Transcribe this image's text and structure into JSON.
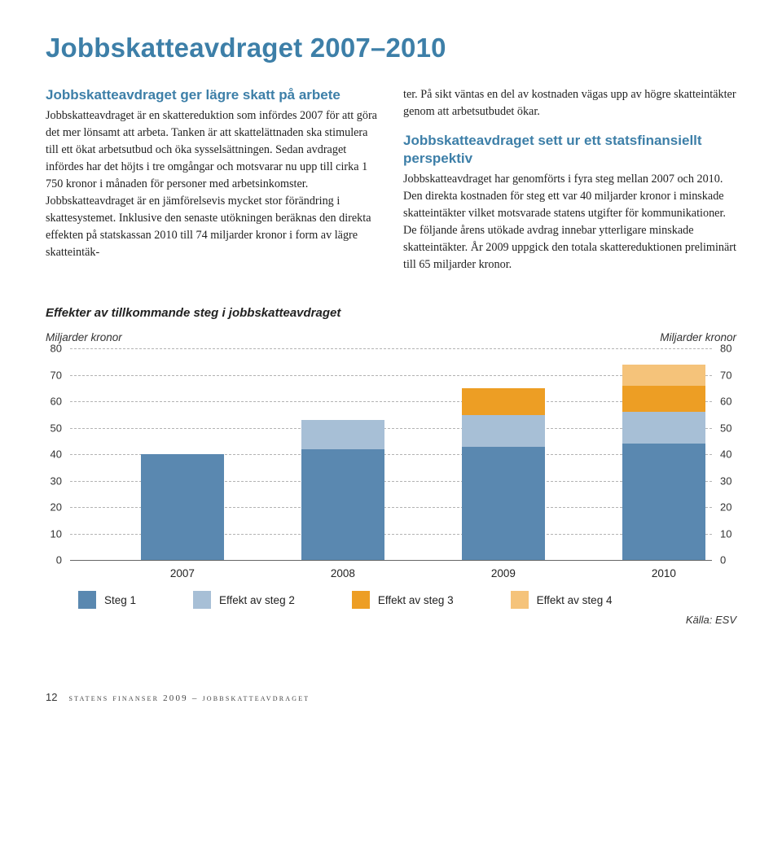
{
  "title": "Jobbskatteavdraget 2007–2010",
  "left": {
    "heading": "Jobbskatteavdraget ger lägre skatt på arbete",
    "body": "Jobbskatteavdraget är en skattereduktion som infördes 2007 för att göra det mer lönsamt att arbeta. Tanken är att skattelättnaden ska stimulera till ett ökat arbetsutbud och öka sysselsättningen. Sedan avdraget infördes har det höjts i tre omgångar och motsvarar nu upp till cirka 1 750 kronor i månaden för personer med arbetsinkomster. Jobbskatteavdraget är en jämförelsevis mycket stor förändring i skattesystemet. Inklusive den senaste utökningen beräknas den direkta effekten på statskassan 2010 till 74 miljarder kronor i form av lägre skatteintäk-"
  },
  "right": {
    "body_intro": "ter. På sikt väntas en del av kostnaden vägas upp av högre skatteintäkter genom att arbetsutbudet ökar.",
    "heading": "Jobbskatteavdraget sett ur ett statsfinansiellt perspektiv",
    "body": "Jobbskatteavdraget har genomförts i fyra steg mellan 2007 och 2010. Den direkta kostnaden för steg ett var 40 miljarder kronor i minskade skatteintäkter vilket motsvarade statens utgifter för kommunikationer. De följande årens utökade avdrag innebar ytterligare minskade skatteintäkter. År 2009 uppgick den totala skattereduktionen preliminärt till 65 miljarder kronor."
  },
  "chart": {
    "title": "Effekter av tillkommande steg i jobbskatteavdraget",
    "y_label_left": "Miljarder kronor",
    "y_label_right": "Miljarder kronor",
    "ymax": 80,
    "ytick_step": 10,
    "yticks": [
      0,
      10,
      20,
      30,
      40,
      50,
      60,
      70,
      80
    ],
    "categories": [
      "2007",
      "2008",
      "2009",
      "2010"
    ],
    "series": [
      {
        "key": "steg1",
        "label": "Steg 1",
        "color": "#5a88b0"
      },
      {
        "key": "steg2",
        "label": "Effekt av steg 2",
        "color": "#a7bfd6"
      },
      {
        "key": "steg3",
        "label": "Effekt av steg 3",
        "color": "#ed9e24"
      },
      {
        "key": "steg4",
        "label": "Effekt av steg 4",
        "color": "#f5c37a"
      }
    ],
    "stacks": [
      {
        "steg1": 40,
        "steg2": 0,
        "steg3": 0,
        "steg4": 0
      },
      {
        "steg1": 42,
        "steg2": 11,
        "steg3": 0,
        "steg4": 0
      },
      {
        "steg1": 43,
        "steg2": 12,
        "steg3": 10,
        "steg4": 0
      },
      {
        "steg1": 44,
        "steg2": 12,
        "steg3": 10,
        "steg4": 8
      }
    ],
    "bar_left_pct": [
      11,
      36,
      61,
      86
    ],
    "source": "Källa: ESV"
  },
  "footer": {
    "page": "12",
    "text": "statens finanser 2009 – jobbskatteavdraget"
  }
}
